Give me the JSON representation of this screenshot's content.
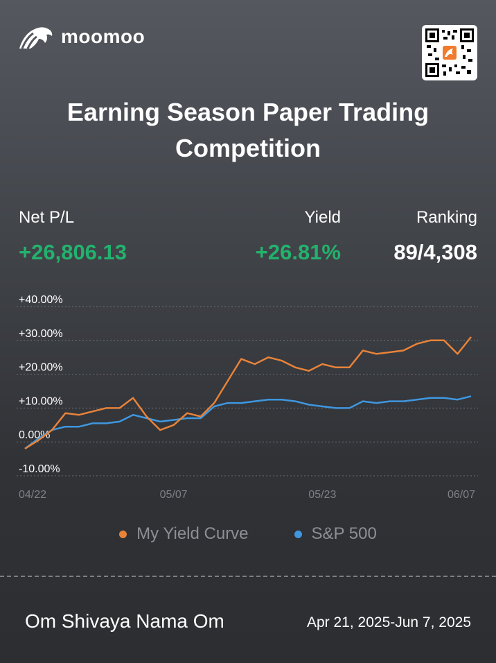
{
  "brand": {
    "name": "moomoo"
  },
  "title": "Earning Season Paper Trading Competition",
  "stats": {
    "net_pl_label": "Net P/L",
    "net_pl_value": "+26,806.13",
    "yield_label": "Yield",
    "yield_value": "+26.81%",
    "ranking_label": "Ranking",
    "ranking_value": "89/4,308"
  },
  "colors": {
    "positive": "#23b26d",
    "my_curve": "#e8833a",
    "sp500": "#3f97e0"
  },
  "chart_data": {
    "type": "line",
    "ylim": [
      -10,
      40
    ],
    "yticks": [
      40,
      30,
      20,
      10,
      0,
      -10
    ],
    "ytick_labels": [
      "+40.00%",
      "+30.00%",
      "+20.00%",
      "+10.00%",
      "0.00%",
      "-10.00%"
    ],
    "xtick_labels": [
      "04/22",
      "05/07",
      "05/23",
      "06/07"
    ],
    "xtick_positions": [
      0,
      13,
      26,
      39
    ],
    "xlim": [
      0,
      39
    ],
    "grid": true,
    "legend_position": "bottom",
    "series": [
      {
        "name": "My Yield Curve",
        "color": "#e8833a",
        "values": [
          -2.0,
          0.5,
          3.5,
          8.5,
          8.0,
          9.0,
          10.0,
          10.0,
          13.0,
          7.5,
          3.5,
          5.0,
          8.5,
          7.5,
          11.5,
          18.0,
          24.5,
          23.0,
          25.0,
          24.0,
          22.0,
          21.0,
          23.0,
          22.0,
          22.0,
          27.0,
          26.0,
          26.5,
          27.0,
          29.0,
          30.0,
          30.0,
          26.0,
          31.0
        ]
      },
      {
        "name": "S&P 500",
        "color": "#3f97e0",
        "values": [
          -2.0,
          1.0,
          3.5,
          4.5,
          4.5,
          5.5,
          5.5,
          6.0,
          8.0,
          7.0,
          6.0,
          6.5,
          7.0,
          7.0,
          10.5,
          11.5,
          11.5,
          12.0,
          12.5,
          12.5,
          12.0,
          11.0,
          10.5,
          10.0,
          10.0,
          12.0,
          11.5,
          12.0,
          12.0,
          12.5,
          13.0,
          13.0,
          12.5,
          13.5
        ]
      }
    ]
  },
  "footer": {
    "name": "Om Shivaya Nama Om",
    "date_range": "Apr 21, 2025-Jun 7, 2025"
  }
}
